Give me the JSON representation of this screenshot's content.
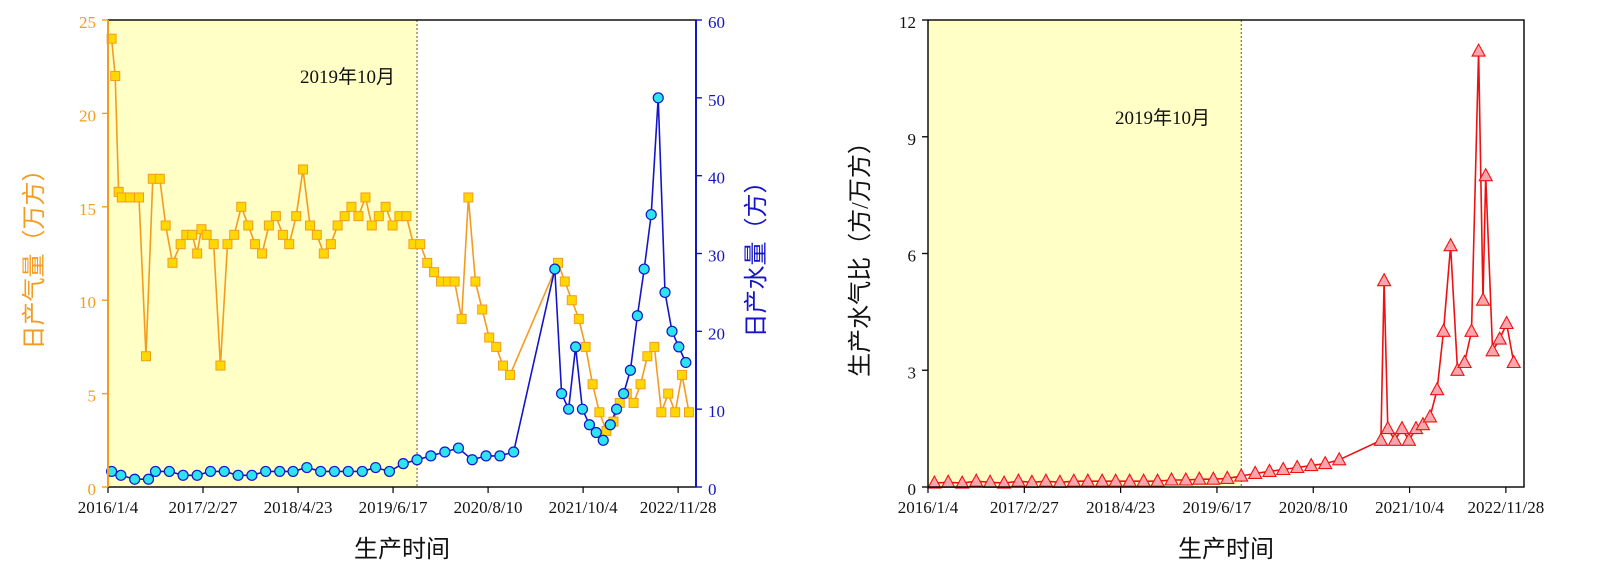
{
  "chart_data": [
    {
      "type": "line",
      "annotation": "2019年10月",
      "xlabel": "生产时间",
      "x_ticks": [
        "2016/1/4",
        "2017/2/27",
        "2018/4/23",
        "2019/6/17",
        "2020/8/10",
        "2021/10/4",
        "2022/11/28"
      ],
      "x_tick_dates": [
        "2016-01-04",
        "2017-02-27",
        "2018-04-23",
        "2019-06-17",
        "2020-08-10",
        "2021-10-04",
        "2022-11-28"
      ],
      "xlim": [
        "2016-01-04",
        "2023-02-15"
      ],
      "highlight_range": [
        "2016-01-04",
        "2019-10-01"
      ],
      "y_left": {
        "label": "日产气量（万方）",
        "ylim": [
          0,
          25
        ],
        "ticks": [
          "0",
          "5",
          "10",
          "15",
          "20",
          "25"
        ],
        "color": "#f39c1f"
      },
      "y_right": {
        "label": "日产水量（方）",
        "ylim": [
          0,
          60
        ],
        "ticks": [
          "0",
          "10",
          "20",
          "30",
          "40",
          "50",
          "60"
        ],
        "color": "#1515c8"
      },
      "series": [
        {
          "name": "日产气量",
          "axis": "left",
          "marker": "square",
          "line_color": "#f39c1f",
          "marker_color": "#ffd800",
          "x": [
            "2016-01-20",
            "2016-02-05",
            "2016-02-20",
            "2016-03-05",
            "2016-04-10",
            "2016-05-20",
            "2016-06-20",
            "2016-07-20",
            "2016-08-20",
            "2016-09-15",
            "2016-10-15",
            "2016-11-20",
            "2016-12-15",
            "2017-01-10",
            "2017-02-01",
            "2017-02-20",
            "2017-03-15",
            "2017-04-15",
            "2017-05-15",
            "2017-06-15",
            "2017-07-15",
            "2017-08-15",
            "2017-09-15",
            "2017-10-15",
            "2017-11-15",
            "2017-12-15",
            "2018-01-15",
            "2018-02-15",
            "2018-03-15",
            "2018-04-15",
            "2018-05-15",
            "2018-06-15",
            "2018-07-15",
            "2018-08-15",
            "2018-09-15",
            "2018-10-15",
            "2018-11-15",
            "2018-12-15",
            "2019-01-15",
            "2019-02-15",
            "2019-03-15",
            "2019-04-15",
            "2019-05-15",
            "2019-06-15",
            "2019-07-15",
            "2019-08-15",
            "2019-09-15",
            "2019-10-15",
            "2019-11-15",
            "2019-12-15",
            "2020-01-15",
            "2020-02-15",
            "2020-03-15",
            "2020-04-15",
            "2020-05-15",
            "2020-06-15",
            "2020-07-15",
            "2020-08-15",
            "2020-09-15",
            "2020-10-15",
            "2020-11-15",
            "2021-06-15",
            "2021-07-15",
            "2021-08-15",
            "2021-09-15",
            "2021-10-15",
            "2021-11-15",
            "2021-12-15",
            "2022-01-15",
            "2022-02-15",
            "2022-03-15",
            "2022-04-15",
            "2022-05-15",
            "2022-06-15",
            "2022-07-15",
            "2022-08-15",
            "2022-09-15",
            "2022-10-15",
            "2022-11-15",
            "2022-12-15",
            "2023-01-15"
          ],
          "values": [
            24,
            22,
            15.8,
            15.5,
            15.5,
            15.5,
            7,
            16.5,
            16.5,
            14,
            12,
            13,
            13.5,
            13.5,
            12.5,
            13.8,
            13.5,
            13,
            6.5,
            13,
            13.5,
            15,
            14,
            13,
            12.5,
            14,
            14.5,
            13.5,
            13,
            14.5,
            17,
            14,
            13.5,
            12.5,
            13,
            14,
            14.5,
            15,
            14.5,
            15.5,
            14,
            14.5,
            15,
            14,
            14.5,
            14.5,
            13,
            13,
            12,
            11.5,
            11,
            11,
            11,
            9,
            15.5,
            11,
            9.5,
            8,
            7.5,
            6.5,
            6,
            12,
            11,
            10,
            9,
            7.5,
            5.5,
            4,
            3,
            3.5,
            4.5,
            5,
            4.5,
            5.5,
            7,
            7.5,
            4,
            5,
            4,
            6,
            4
          ]
        },
        {
          "name": "日产水量",
          "axis": "right",
          "marker": "circle",
          "line_color": "#1515c8",
          "marker_color": "#2de3ee",
          "x": [
            "2016-01-20",
            "2016-03-01",
            "2016-05-01",
            "2016-07-01",
            "2016-08-01",
            "2016-10-01",
            "2016-12-01",
            "2017-02-01",
            "2017-04-01",
            "2017-06-01",
            "2017-08-01",
            "2017-10-01",
            "2017-12-01",
            "2018-02-01",
            "2018-04-01",
            "2018-06-01",
            "2018-08-01",
            "2018-10-01",
            "2018-12-01",
            "2019-02-01",
            "2019-04-01",
            "2019-06-01",
            "2019-08-01",
            "2019-10-01",
            "2019-12-01",
            "2020-02-01",
            "2020-04-01",
            "2020-06-01",
            "2020-08-01",
            "2020-10-01",
            "2020-12-01",
            "2021-06-01",
            "2021-07-01",
            "2021-08-01",
            "2021-09-01",
            "2021-10-01",
            "2021-11-01",
            "2021-12-01",
            "2022-01-01",
            "2022-02-01",
            "2022-03-01",
            "2022-04-01",
            "2022-05-01",
            "2022-06-01",
            "2022-07-01",
            "2022-08-01",
            "2022-09-01",
            "2022-10-01",
            "2022-11-01",
            "2022-12-01",
            "2023-01-01"
          ],
          "values": [
            2,
            1.5,
            1,
            1,
            2,
            2,
            1.5,
            1.5,
            2,
            2,
            1.5,
            1.5,
            2,
            2,
            2,
            2.5,
            2,
            2,
            2,
            2,
            2.5,
            2,
            3,
            3.5,
            4,
            4.5,
            5,
            3.5,
            4,
            4,
            4.5,
            28,
            12,
            10,
            18,
            10,
            8,
            7,
            6,
            8,
            10,
            12,
            15,
            22,
            28,
            35,
            50,
            25,
            20,
            18,
            16
          ]
        }
      ]
    },
    {
      "type": "scatter",
      "annotation": "2019年10月",
      "xlabel": "生产时间",
      "ylabel": "生产水气比（方/万方）",
      "x_ticks": [
        "2016/1/4",
        "2017/2/27",
        "2018/4/23",
        "2019/6/17",
        "2020/8/10",
        "2021/10/4",
        "2022/11/28"
      ],
      "x_tick_dates": [
        "2016-01-04",
        "2017-02-27",
        "2018-04-23",
        "2019-06-17",
        "2020-08-10",
        "2021-10-04",
        "2022-11-28"
      ],
      "xlim": [
        "2016-01-04",
        "2023-02-15"
      ],
      "highlight_range": [
        "2016-01-04",
        "2019-10-01"
      ],
      "ylim": [
        0,
        12
      ],
      "y_ticks": [
        "0",
        "3",
        "6",
        "9",
        "12"
      ],
      "series": [
        {
          "name": "生产水气比",
          "marker": "triangle",
          "line_color": "#ee1111",
          "marker_color": "#f7a6ad",
          "x": [
            "2016-02-01",
            "2016-04-01",
            "2016-06-01",
            "2016-08-01",
            "2016-10-01",
            "2016-12-01",
            "2017-02-01",
            "2017-04-01",
            "2017-06-01",
            "2017-08-01",
            "2017-10-01",
            "2017-12-01",
            "2018-02-01",
            "2018-04-01",
            "2018-06-01",
            "2018-08-01",
            "2018-10-01",
            "2018-12-01",
            "2019-02-01",
            "2019-04-01",
            "2019-06-01",
            "2019-08-01",
            "2019-10-01",
            "2019-12-01",
            "2020-02-01",
            "2020-04-01",
            "2020-06-01",
            "2020-08-01",
            "2020-10-01",
            "2020-12-01",
            "2021-06-01",
            "2021-06-15",
            "2021-07-01",
            "2021-08-01",
            "2021-09-01",
            "2021-10-01",
            "2021-11-01",
            "2021-12-01",
            "2022-01-01",
            "2022-02-01",
            "2022-03-01",
            "2022-04-01",
            "2022-05-01",
            "2022-06-01",
            "2022-07-01",
            "2022-08-01",
            "2022-08-20",
            "2022-09-01",
            "2022-10-01",
            "2022-11-01",
            "2022-12-01",
            "2023-01-01"
          ],
          "values": [
            0.1,
            0.12,
            0.1,
            0.15,
            0.12,
            0.1,
            0.15,
            0.12,
            0.15,
            0.12,
            0.15,
            0.15,
            0.15,
            0.15,
            0.15,
            0.15,
            0.15,
            0.18,
            0.18,
            0.2,
            0.2,
            0.22,
            0.28,
            0.35,
            0.4,
            0.45,
            0.5,
            0.55,
            0.6,
            0.7,
            1.2,
            5.3,
            1.5,
            1.2,
            1.5,
            1.2,
            1.5,
            1.6,
            1.8,
            2.5,
            4,
            6.2,
            3,
            3.2,
            4,
            11.2,
            4.8,
            8,
            3.5,
            3.8,
            4.2,
            3.2
          ]
        }
      ]
    }
  ]
}
